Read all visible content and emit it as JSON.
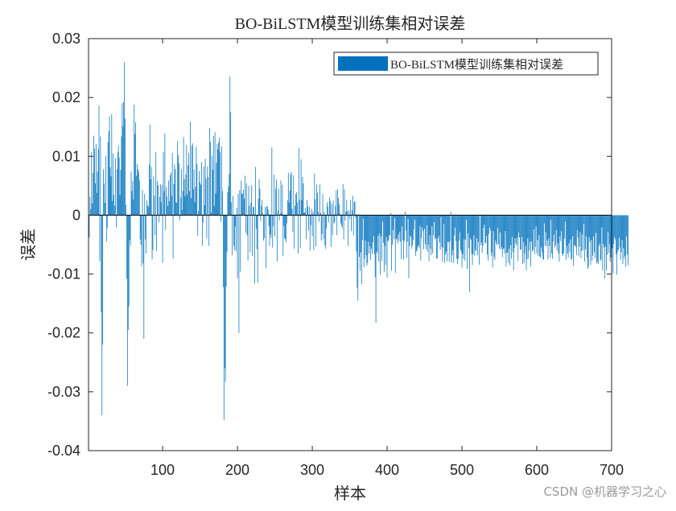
{
  "watermark": "CSDN @机器学习之心",
  "colors": {
    "bar": "#0072BD",
    "axis": "#262626",
    "background": "#ffffff"
  },
  "chart_data": {
    "type": "bar",
    "title": "BO-BiLSTM模型训练集相对误差",
    "xlabel": "样本",
    "ylabel": "误差",
    "xlim": [
      1,
      700
    ],
    "ylim": [
      -0.04,
      0.03
    ],
    "xticks": [
      100,
      200,
      300,
      400,
      500,
      600,
      700
    ],
    "xtick_labels": [
      "100",
      "200",
      "300",
      "400",
      "500",
      "600",
      "700"
    ],
    "yticks": [
      -0.04,
      -0.03,
      -0.02,
      -0.01,
      0,
      0.01,
      0.02,
      0.03
    ],
    "ytick_labels": [
      "-0.04",
      "-0.03",
      "-0.02",
      "-0.01",
      "0",
      "0.01",
      "0.02",
      "0.03"
    ],
    "legend": {
      "position": "top-right",
      "entries": [
        "BO-BiLSTM模型训练集相对误差"
      ]
    },
    "grid": false,
    "series": [
      {
        "name": "BO-BiLSTM模型训练集相对误差",
        "color": "#0072BD",
        "x_start": 1,
        "x_step": 1,
        "values": [
          0.0032,
          -0.0038,
          0.0031,
          0.001,
          0.0107,
          0.002,
          0.0072,
          0.0135,
          0.0113,
          0.0054,
          0.0121,
          0.0038,
          0.0074,
          0.0112,
          0.0186,
          -0.0078,
          0.0134,
          -0.0165,
          -0.034,
          -0.022,
          0.0078,
          0.0054,
          0.0021,
          0.0101,
          -0.0045,
          -0.0022,
          0.0124,
          0.0143,
          0.0168,
          0.0081,
          0.0066,
          0.0172,
          0.0024,
          0.0105,
          0.0035,
          0.0016,
          0.0097,
          -0.0021,
          0.0078,
          0.0107,
          0.0118,
          0.0098,
          0.0034,
          0.0077,
          0.0134,
          0.019,
          0.0151,
          0.0192,
          0.026,
          0.0164,
          0.0018,
          -0.0108,
          -0.029,
          -0.0195,
          -0.0155,
          -0.0042,
          -0.0052,
          0.0074,
          0.0041,
          0.0058,
          0.0027,
          0.0188,
          0.0138,
          0.0158,
          0.0067,
          0.0087,
          0.0078,
          0.0073,
          0.0059,
          -0.0041,
          -0.005,
          -0.0087,
          0.0043,
          -0.0082,
          -0.021,
          0.0036,
          -0.0041,
          -0.0065,
          0.0025,
          0.0017,
          0.0014,
          0.0086,
          0.0154,
          0.0061,
          0.0082,
          -0.0075,
          -0.0059,
          0.0066,
          0.0033,
          -0.0034,
          0.0107,
          -0.0061,
          0.0058,
          0.0051,
          -0.0012,
          0.0031,
          0.0053,
          0.0022,
          0.0051,
          -0.0081,
          0.0107,
          0.0041,
          0.0139,
          -0.0025,
          0.0048,
          0.0032,
          0.0016,
          0.0059,
          0.0024,
          0.0068,
          0.0072,
          0.0033,
          0.0106,
          -0.0074,
          0.0053,
          0.0086,
          0.0078,
          0.0022,
          0.0021,
          0.0126,
          0.0102,
          0.0088,
          -0.0008,
          0.0031,
          0.0078,
          0.0009,
          0.0041,
          0.0133,
          0.0061,
          0.0032,
          0.0069,
          0.012,
          0.0035,
          0.0085,
          0.0106,
          0.0041,
          0.0159,
          0.0029,
          0.0118,
          0.0122,
          0.0044,
          0.0078,
          0.0022,
          0.0048,
          0.0116,
          0.0087,
          -0.0035,
          0.0007,
          0.0075,
          0.0056,
          0.0052,
          0.009,
          -0.0052,
          -0.0012,
          0.0083,
          0.0017,
          0.0096,
          0.0062,
          -0.0039,
          0.0083,
          0.0065,
          -0.0052,
          0.0148,
          0.0124,
          0.0005,
          0.0101,
          0.0077,
          0.0135,
          0.0016,
          0.0141,
          0.0037,
          0.0089,
          0.0121,
          0.0112,
          0.0124,
          0.0132,
          0.0107,
          -0.0011,
          0.0117,
          0.0041,
          -0.0122,
          -0.0348,
          -0.026,
          -0.0283,
          -0.0121,
          -0.0062,
          0.0039,
          0.0049,
          0.007,
          0.0236,
          0.0175,
          0.0022,
          -0.0068,
          0.0033,
          -0.0052,
          -0.0059,
          -0.0019,
          -0.0061,
          0.0013,
          -0.0107,
          0.0036,
          -0.02,
          0.0043,
          -0.0096,
          0.0059,
          0.0037,
          0.0036,
          0.0043,
          0.0028,
          0.0067,
          -0.003,
          0.0054,
          -0.0034,
          -0.0077,
          0.005,
          0.0016,
          -0.0063,
          0.0021,
          0.0051,
          -0.0069,
          0.0014,
          0.0014,
          -0.0116,
          0.0082,
          -0.0023,
          -0.0058,
          -0.0115,
          0.0028,
          0.0061,
          0.0045,
          -0.001,
          0.0016,
          0.0026,
          0.0003,
          -0.0043,
          -0.0039,
          0.0014,
          -0.009,
          0.0015,
          0.0015,
          0.0009,
          -0.0018,
          -0.0052,
          -0.0033,
          -0.0039,
          0.0115,
          -0.0055,
          -0.0019,
          0.0069,
          -0.0036,
          0.0045,
          0.0061,
          -0.0079,
          0.0008,
          0.0045,
          -0.0009,
          0.0002,
          0.0059,
          0.0004,
          0.0052,
          -0.0069,
          -0.0018,
          -0.0039,
          -0.0041,
          -0.0046,
          -0.0014,
          0.0025,
          0.0072,
          0.0021,
          0.0042,
          0.0069,
          0.0073,
          0.0011,
          -0.0028,
          0.0068,
          -0.0057,
          0.0016,
          0.0036,
          0.0039,
          0.0022,
          -0.0065,
          0.0114,
          0.0026,
          -0.0056,
          0.0095,
          0.0026,
          0.0065,
          0.0054,
          0.0004,
          0.0005,
          0.0012,
          -0.0041,
          0.0026,
          0.0015,
          -0.0026,
          0.0014,
          -0.006,
          -0.0017,
          0.0011,
          -0.0036,
          0.0006,
          -0.0059,
          0.0071,
          0.0027,
          -0.0053,
          0.0052,
          0.0038,
          0.0006,
          -0.0011,
          0.0052,
          0.0004,
          -0.0043,
          -0.0032,
          0.0036,
          -0.0041,
          0.0006,
          -0.0051,
          -0.0057,
          -0.0023,
          0.0022,
          0.0015,
          -0.0012,
          0.003,
          0.0024,
          -0.0054,
          0.0019,
          -0.0034,
          0.0025,
          -0.0014,
          -0.0012,
          0.0016,
          0.0042,
          -0.0034,
          0.0044,
          0.0029,
          0.0019,
          0.0003,
          -0.0014,
          -0.0018,
          -0.0022,
          0.0053,
          -0.0041,
          0.0044,
          -0.0009,
          0.0006,
          0.0026,
          0.0007,
          -0.0052,
          0.0008,
          -0.0006,
          0.0026,
          -0.0027,
          0.0009,
          0.0033,
          -0.0034,
          0.0023,
          0.0023,
          -0.0004,
          -0.0061,
          -0.0123,
          -0.0145,
          0.0002,
          -0.0071,
          -0.0095,
          -0.0063,
          -0.0117,
          -0.0042,
          -0.0006,
          -0.0088,
          -0.0074,
          -0.0043,
          -0.0068,
          -0.0086,
          -0.0081,
          -0.0045,
          -0.0065,
          -0.0053,
          -0.0076,
          -0.0057,
          -0.0066,
          -0.0046,
          -0.0035,
          -0.0066,
          -0.0105,
          -0.0183,
          -0.0062,
          -0.0065,
          -0.0035,
          -0.0079,
          -0.0031,
          -0.0101,
          -0.0036,
          -0.0078,
          -0.0011,
          -0.0047,
          -0.0096,
          -0.0052,
          -0.0084,
          -0.0037,
          -0.0106,
          -0.0044,
          -0.0043,
          -0.0034,
          -0.0034,
          0.0004,
          -0.0094,
          -0.005,
          -0.0025,
          -0.0041,
          -0.0005,
          -0.0098,
          -0.004,
          -0.0041,
          -0.0048,
          -0.0033,
          -0.0044,
          -0.0028,
          -0.0045,
          -0.0075,
          -0.0019,
          -0.0042,
          -0.0075,
          -0.0044,
          0.0006,
          -0.0026,
          -0.0072,
          -0.0045,
          -0.0006,
          -0.0107,
          -0.0052,
          -0.0035,
          -0.0037,
          -0.0057,
          -0.0051,
          -0.0042,
          -0.0024,
          -0.0008,
          -0.0069,
          -0.0062,
          -0.0059,
          -0.0054,
          -0.0051,
          -0.0056,
          -0.0018,
          -0.0077,
          -0.0039,
          -0.0021,
          -0.0027,
          -0.0058,
          -0.0023,
          -0.0049,
          -0.0058,
          -0.0017,
          -0.0062,
          -0.005,
          -0.0078,
          -0.0034,
          -0.0057,
          -0.0068,
          -0.0019,
          -0.0065,
          -0.0034,
          -0.0012,
          -0.0041,
          -0.0039,
          -0.0074,
          -0.0073,
          -0.0039,
          -0.0035,
          -0.0046,
          -0.0059,
          -0.0003,
          -0.0054,
          -0.0079,
          -0.0055,
          -0.0015,
          -0.0081,
          -0.0067,
          -0.0062,
          -0.0078,
          -0.0045,
          -0.0046,
          -0.0079,
          -0.0044,
          0.0006,
          -0.0081,
          -0.0068,
          -0.0059,
          -0.0081,
          -0.0034,
          -0.0021,
          -0.0044,
          -0.0074,
          -0.0083,
          -0.0074,
          -0.0043,
          -0.0029,
          -0.0058,
          -0.0062,
          -0.0089,
          -0.0066,
          -0.0074,
          -0.0041,
          -0.0077,
          -0.0042,
          -0.0008,
          -0.0091,
          -0.0031,
          -0.0056,
          -0.0131,
          -0.0039,
          -0.0042,
          -0.0066,
          -0.0085,
          -0.0066,
          -0.0034,
          -0.0069,
          -0.0059,
          -0.0061,
          -0.0039,
          -0.0068,
          -0.0045,
          -0.0084,
          0.0001,
          -0.0051,
          -0.0046,
          -0.0064,
          -0.0052,
          -0.0022,
          -0.0016,
          -0.0048,
          -0.0047,
          -0.0035,
          -0.0067,
          -0.0077,
          -0.0032,
          -0.0021,
          -0.0026,
          -0.0069,
          -0.0063,
          -0.0089,
          -0.0027,
          -0.0071,
          -0.0076,
          -0.0043,
          -0.0048,
          -0.0051,
          -0.0022,
          -0.0049,
          -0.0057,
          -0.0029,
          -0.0058,
          -0.0054,
          -0.0071,
          -0.0058,
          -0.0056,
          -0.0065,
          -0.0027,
          -0.0087,
          -0.0064,
          -0.0063,
          -0.0081,
          -0.0057,
          -0.0085,
          -0.0051,
          -0.0074,
          -0.0037,
          -0.0063,
          -0.0094,
          -0.0056,
          -0.0039,
          -0.0048,
          -0.0052,
          -0.0038,
          -0.0078,
          -0.0029,
          -0.0038,
          -0.0058,
          -0.0059,
          -0.0037,
          -0.0083,
          -0.0046,
          -0.0081,
          -0.0065,
          -0.0052,
          -0.0093,
          -0.0075,
          -0.0039,
          -0.0074,
          -0.006,
          -0.0045,
          -0.0087,
          -0.0045,
          -0.0062,
          -0.0059,
          -0.0024,
          -0.0066,
          -0.0054,
          -0.0019,
          -0.0065,
          -0.0042,
          -0.0069,
          -0.0034,
          -0.007,
          -0.0072,
          -0.0055,
          -0.0063,
          -0.0074,
          -0.0076,
          -0.0014,
          -0.0052,
          -0.0029,
          -0.0053,
          -0.0043,
          -0.0075,
          -0.0039,
          -0.0052,
          -0.0072,
          -0.0008,
          -0.0065,
          -0.0074,
          -0.0045,
          -0.0033,
          -0.0055,
          -0.0051,
          -0.0025,
          -0.006,
          -0.0047,
          -0.0065,
          -0.0079,
          -0.0036,
          -0.0044,
          -0.0027,
          -0.0066,
          -0.0069,
          -0.0064,
          -0.004,
          -0.0011,
          -0.0076,
          -0.0052,
          -0.0065,
          -0.0072,
          -0.0048,
          -0.0062,
          -0.0041,
          -0.0076,
          -0.0074,
          -0.0036,
          -0.0086,
          -0.0052,
          -0.0051,
          -0.0054,
          -0.0068,
          -0.0025,
          -0.0038,
          -0.007,
          -0.0053,
          -0.0029,
          -0.0073,
          -0.0061,
          -0.0033,
          -0.006,
          -0.0015,
          -0.0079,
          -0.0058,
          -0.0036,
          -0.0072,
          -0.0092,
          -0.0088,
          -0.0037,
          -0.0045,
          -0.0084,
          -0.0042,
          -0.0077,
          -0.0069,
          -0.0036,
          -0.0063,
          -0.0073,
          -0.003,
          -0.0082,
          -0.0079,
          -0.0083,
          -0.0052,
          -0.0048,
          -0.0078,
          -0.0075,
          -0.0021,
          -0.0094,
          -0.0049,
          -0.0055,
          -0.0108,
          -0.0053,
          -0.0094,
          -0.0067,
          -0.0029,
          -0.0064,
          -0.0049,
          -0.0079,
          -0.0072,
          -0.0086,
          -0.0056,
          -0.0099,
          -0.0049,
          -0.0037,
          -0.0041,
          -0.0067,
          -0.0101,
          -0.0063,
          -0.0059,
          -0.0038,
          -0.0055,
          -0.0076,
          -0.0063,
          -0.0042,
          -0.0083,
          -0.0056,
          -0.0074,
          -0.0069,
          -0.0088,
          -0.0036,
          -0.0067,
          -0.0085
        ]
      }
    ]
  }
}
